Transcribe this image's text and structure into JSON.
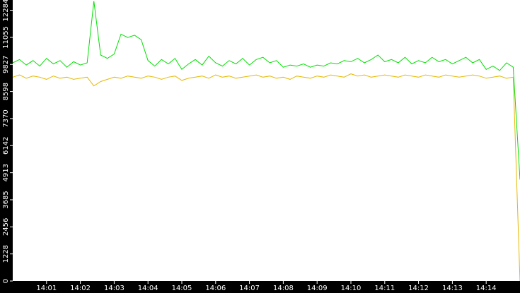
{
  "chart_data": {
    "type": "line",
    "x": [
      840.0,
      840.2,
      840.4,
      840.6,
      840.8,
      841.0,
      841.2,
      841.4,
      841.6,
      841.8,
      842.0,
      842.2,
      842.4,
      842.6,
      842.8,
      843.0,
      843.2,
      843.4,
      843.6,
      843.8,
      844.0,
      844.2,
      844.4,
      844.6,
      844.8,
      845.0,
      845.2,
      845.4,
      845.6,
      845.8,
      846.0,
      846.2,
      846.4,
      846.6,
      846.8,
      847.0,
      847.2,
      847.4,
      847.6,
      847.8,
      848.0,
      848.2,
      848.4,
      848.6,
      848.8,
      849.0,
      849.2,
      849.4,
      849.6,
      849.8,
      850.0,
      850.2,
      850.4,
      850.6,
      850.8,
      851.0,
      851.2,
      851.4,
      851.6,
      851.8,
      852.0,
      852.2,
      852.4,
      852.6,
      852.8,
      853.0,
      853.2,
      853.4,
      853.6,
      853.8,
      854.0,
      854.2,
      854.4,
      854.6,
      854.8,
      855.0
    ],
    "series": [
      {
        "color": "#00e000",
        "values": [
          9900,
          10050,
          9800,
          10000,
          9750,
          10100,
          9850,
          10000,
          9700,
          9950,
          9800,
          9900,
          12700,
          10250,
          10100,
          10300,
          11200,
          11050,
          11150,
          10950,
          10000,
          9750,
          10050,
          9850,
          10100,
          9600,
          9850,
          10050,
          9800,
          10200,
          9900,
          9750,
          10000,
          9850,
          10100,
          9800,
          10050,
          10150,
          9900,
          10000,
          9700,
          9800,
          9750,
          9850,
          9700,
          9800,
          9750,
          9900,
          9850,
          10000,
          9950,
          10100,
          9900,
          10050,
          10250,
          9950,
          10050,
          9900,
          10150,
          9850,
          10000,
          9900,
          10150,
          9950,
          10050,
          9850,
          10000,
          10150,
          9900,
          10050,
          9600,
          9750,
          9550,
          9900,
          9700,
          4600
        ]
      },
      {
        "color": "#e6b800",
        "values": [
          9250,
          9350,
          9200,
          9300,
          9250,
          9150,
          9300,
          9200,
          9250,
          9150,
          9200,
          9250,
          8850,
          9050,
          9150,
          9250,
          9200,
          9300,
          9250,
          9200,
          9300,
          9250,
          9150,
          9250,
          9300,
          9100,
          9200,
          9250,
          9300,
          9200,
          9350,
          9250,
          9300,
          9200,
          9250,
          9300,
          9350,
          9250,
          9300,
          9200,
          9250,
          9150,
          9300,
          9250,
          9200,
          9300,
          9250,
          9350,
          9300,
          9250,
          9400,
          9300,
          9350,
          9250,
          9300,
          9350,
          9300,
          9250,
          9350,
          9300,
          9250,
          9350,
          9300,
          9250,
          9350,
          9300,
          9250,
          9300,
          9350,
          9300,
          9200,
          9250,
          9300,
          9200,
          9250,
          0
        ]
      }
    ],
    "xlim": [
      840,
      855
    ],
    "xticks": [
      {
        "value": 841,
        "label": "14:01"
      },
      {
        "value": 842,
        "label": "14:02"
      },
      {
        "value": 843,
        "label": "14:03"
      },
      {
        "value": 844,
        "label": "14:04"
      },
      {
        "value": 845,
        "label": "14:05"
      },
      {
        "value": 846,
        "label": "14:06"
      },
      {
        "value": 847,
        "label": "14:07"
      },
      {
        "value": 848,
        "label": "14:08"
      },
      {
        "value": 849,
        "label": "14:09"
      },
      {
        "value": 850,
        "label": "14:10"
      },
      {
        "value": 851,
        "label": "14:11"
      },
      {
        "value": 852,
        "label": "14:12"
      },
      {
        "value": 853,
        "label": "14:13"
      },
      {
        "value": 854,
        "label": "14:14"
      }
    ],
    "ylim": [
      0,
      12750
    ],
    "yticks": [
      0,
      1228,
      2456,
      3685,
      4913,
      6142,
      7370,
      8598,
      9827,
      11055,
      12284
    ]
  }
}
